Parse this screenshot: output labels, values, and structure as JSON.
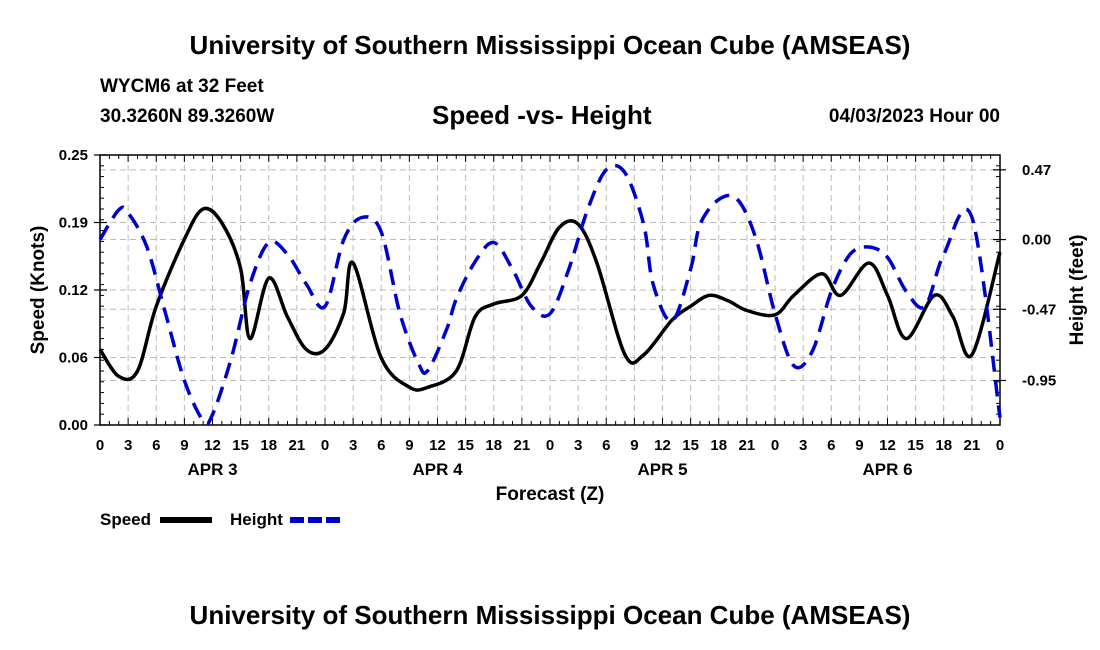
{
  "header": {
    "title": "University of Southern Mississippi Ocean Cube (AMSEAS)",
    "station": "WYCM6 at 32 Feet",
    "coords": "30.3260N  89.3260W",
    "subtitle": "Speed -vs- Height",
    "datetime": "04/03/2023 Hour 00"
  },
  "footer": {
    "title": "University of Southern Mississippi Ocean Cube (AMSEAS)"
  },
  "chart_data": {
    "type": "line",
    "xlabel": "Forecast (Z)",
    "ylabel_left": "Speed (Knots)",
    "ylabel_right": "Height (feet)",
    "x_range_hours": [
      0,
      96
    ],
    "x_ticks": [
      "0",
      "3",
      "6",
      "9",
      "12",
      "15",
      "18",
      "21",
      "0",
      "3",
      "6",
      "9",
      "12",
      "15",
      "18",
      "21",
      "0",
      "3",
      "6",
      "9",
      "12",
      "15",
      "18",
      "21",
      "0",
      "3",
      "6",
      "9",
      "12",
      "15",
      "18",
      "21",
      "0"
    ],
    "day_labels": [
      {
        "label": "APR 3",
        "hour": 12
      },
      {
        "label": "APR 4",
        "hour": 36
      },
      {
        "label": "APR 5",
        "hour": 60
      },
      {
        "label": "APR 6",
        "hour": 84
      }
    ],
    "ylim_left": [
      0,
      0.25
    ],
    "ylim_right": [
      -1.25,
      0.57
    ],
    "yticks_left": [
      "0.00",
      "0.06",
      "0.12",
      "0.19",
      "0.25"
    ],
    "yticks_left_values": [
      0,
      0.0625,
      0.125,
      0.1875,
      0.25
    ],
    "yticks_right": [
      "0.47",
      "0.00",
      "-0.47",
      "-0.95"
    ],
    "yticks_right_values": [
      0.47,
      0.0,
      -0.47,
      -0.95
    ],
    "grid": true,
    "legend": [
      {
        "name": "Speed",
        "color": "#000000",
        "style": "solid"
      },
      {
        "name": "Height",
        "color": "#0000cc",
        "style": "dashed"
      }
    ],
    "series": [
      {
        "name": "Speed",
        "axis": "left",
        "color": "#000000",
        "x": [
          0,
          2,
          4,
          6,
          9,
          11,
          13,
          15,
          16,
          18,
          20,
          22,
          24,
          26,
          27,
          30,
          33,
          35,
          38,
          40,
          42,
          45,
          47,
          49,
          51,
          53,
          56,
          58,
          61,
          63,
          65,
          67,
          69,
          72,
          74,
          77,
          79,
          82,
          84,
          86,
          89,
          91,
          93,
          96
        ],
        "values": [
          0.07,
          0.045,
          0.05,
          0.11,
          0.172,
          0.2,
          0.187,
          0.145,
          0.08,
          0.136,
          0.1,
          0.07,
          0.07,
          0.104,
          0.15,
          0.062,
          0.035,
          0.035,
          0.05,
          0.1,
          0.112,
          0.12,
          0.15,
          0.183,
          0.186,
          0.15,
          0.065,
          0.065,
          0.097,
          0.11,
          0.12,
          0.115,
          0.106,
          0.102,
          0.12,
          0.14,
          0.12,
          0.15,
          0.12,
          0.08,
          0.12,
          0.1,
          0.065,
          0.16
        ]
      },
      {
        "name": "Height",
        "axis": "right",
        "color": "#0000cc",
        "x": [
          0,
          2,
          3,
          5,
          7,
          9,
          11,
          12,
          14,
          16,
          18,
          20,
          22,
          24,
          26,
          28,
          30,
          32,
          34,
          35,
          37,
          38,
          40,
          42,
          44,
          46,
          48,
          50,
          52,
          54,
          56,
          58,
          59,
          61,
          63,
          64,
          66,
          68,
          70,
          72,
          74,
          76,
          78,
          80,
          82,
          84,
          86,
          88,
          90,
          93,
          96
        ],
        "values": [
          0.0,
          0.2,
          0.18,
          -0.05,
          -0.5,
          -0.95,
          -1.22,
          -1.18,
          -0.8,
          -0.3,
          -0.02,
          -0.1,
          -0.3,
          -0.45,
          0.0,
          0.15,
          0.05,
          -0.5,
          -0.84,
          -0.88,
          -0.6,
          -0.4,
          -0.15,
          -0.02,
          -0.2,
          -0.45,
          -0.5,
          -0.2,
          0.2,
          0.47,
          0.45,
          0.1,
          -0.3,
          -0.55,
          -0.2,
          0.1,
          0.27,
          0.27,
          0.0,
          -0.5,
          -0.85,
          -0.75,
          -0.35,
          -0.1,
          -0.05,
          -0.12,
          -0.35,
          -0.45,
          -0.1,
          0.15,
          -1.2
        ]
      }
    ]
  }
}
